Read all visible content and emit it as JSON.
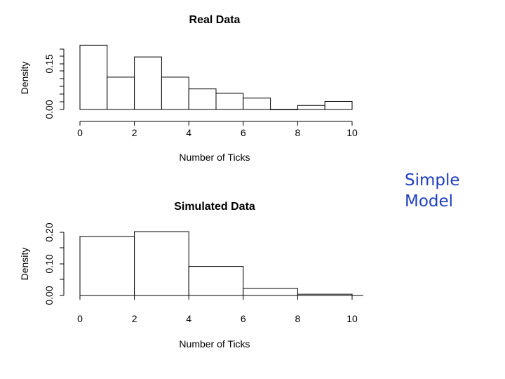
{
  "side_label": {
    "line1": "Simple",
    "line2": "Model"
  },
  "colors": {
    "side_label": "#1f3fbf",
    "bars_stroke": "#000000",
    "bars_fill": "#ffffff"
  },
  "chart_data": [
    {
      "type": "bar",
      "title": "Real Data",
      "xlabel": "Number of Ticks",
      "ylabel": "Density",
      "bins": [
        [
          0,
          1
        ],
        [
          1,
          2
        ],
        [
          2,
          3
        ],
        [
          3,
          4
        ],
        [
          4,
          5
        ],
        [
          5,
          6
        ],
        [
          6,
          7
        ],
        [
          7,
          8
        ],
        [
          8,
          9
        ],
        [
          9,
          10
        ]
      ],
      "values": [
        0.175,
        0.088,
        0.143,
        0.088,
        0.056,
        0.044,
        0.031,
        0.0,
        0.011,
        0.022
      ],
      "xlim": [
        0,
        10
      ],
      "ylim": [
        0,
        0.17
      ],
      "xticks": [
        "0",
        "2",
        "4",
        "6",
        "8",
        "10"
      ],
      "yticks": [
        "0.00",
        "0.15"
      ],
      "grid": false
    },
    {
      "type": "bar",
      "title": "Simulated Data",
      "xlabel": "Number of Ticks",
      "ylabel": "Density",
      "bins": [
        [
          0,
          2
        ],
        [
          2,
          4
        ],
        [
          4,
          6
        ],
        [
          6,
          8
        ],
        [
          8,
          10
        ]
      ],
      "values": [
        0.185,
        0.2,
        0.091,
        0.022,
        0.004
      ],
      "xlim": [
        0,
        10
      ],
      "ylim": [
        0,
        0.2
      ],
      "xticks": [
        "0",
        "2",
        "4",
        "6",
        "8",
        "10"
      ],
      "yticks": [
        "0.00",
        "0.10",
        "0.20"
      ],
      "grid": false
    }
  ]
}
